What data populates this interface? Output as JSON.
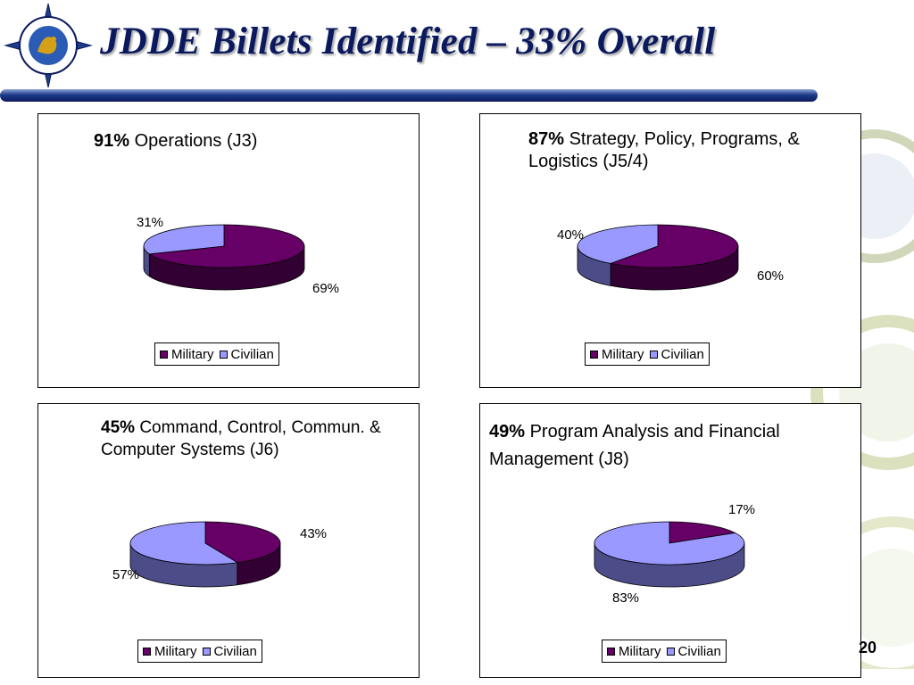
{
  "slide": {
    "title": "JDDE Billets Identified – 33% Overall",
    "number": "20"
  },
  "colors": {
    "military": "#660066",
    "military_dark": "#330033",
    "civilian": "#9999ff",
    "civilian_dark": "#4c4c88",
    "title": "#0b1a5e"
  },
  "legend": {
    "military": "Military",
    "civilian": "Civilian"
  },
  "chart_data": [
    {
      "type": "pie",
      "title_pct": "91%",
      "title_text": "Operations (J3)",
      "categories": [
        "Military",
        "Civilian"
      ],
      "values": [
        69,
        31
      ],
      "labels": [
        "69%",
        "31%"
      ]
    },
    {
      "type": "pie",
      "title_pct": "87%",
      "title_text": "Strategy, Policy, Programs, & Logistics (J5/4)",
      "categories": [
        "Military",
        "Civilian"
      ],
      "values": [
        60,
        40
      ],
      "labels": [
        "60%",
        "40%"
      ]
    },
    {
      "type": "pie",
      "title_pct": "45%",
      "title_text": "Command, Control, Commun. & Computer Systems (J6)",
      "categories": [
        "Military",
        "Civilian"
      ],
      "values": [
        43,
        57
      ],
      "labels": [
        "43%",
        "57%"
      ]
    },
    {
      "type": "pie",
      "title_pct": "49%",
      "title_text": "Program Analysis and Financial Management (J8)",
      "categories": [
        "Military",
        "Civilian"
      ],
      "values": [
        17,
        83
      ],
      "labels": [
        "17%",
        "83%"
      ]
    }
  ]
}
